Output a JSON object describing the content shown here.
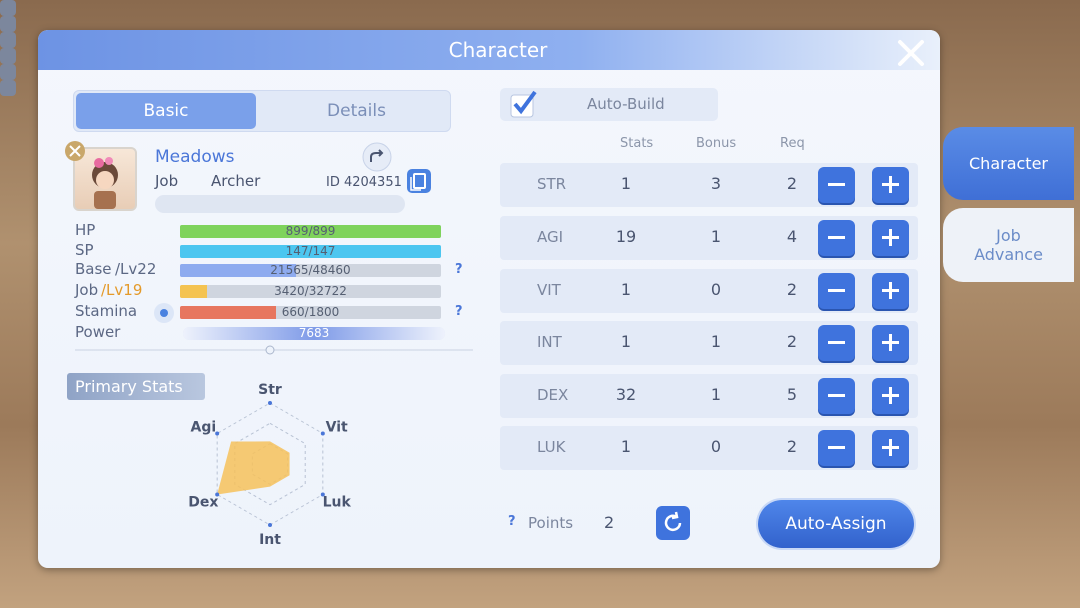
{
  "header": {
    "title": "Character"
  },
  "tabs": [
    "Basic",
    "Details"
  ],
  "profile": {
    "name": "Meadows",
    "job_label": "Job",
    "job": "Archer",
    "id": "ID 4204351"
  },
  "bars": [
    {
      "label": "HP",
      "text": "899/899",
      "current": 899,
      "max": 899,
      "color": "#7fd35c"
    },
    {
      "label": "SP",
      "text": "147/147",
      "current": 147,
      "max": 147,
      "color": "#4cc6f0"
    },
    {
      "label": "Base",
      "level": "/Lv22",
      "text": "21565/48460",
      "current": 21565,
      "max": 48460,
      "color": "#8eabef",
      "help": true
    },
    {
      "label": "Job",
      "level": "/Lv19",
      "text": "3420/32722",
      "current": 3420,
      "max": 32722,
      "color": "#f4c351"
    },
    {
      "label": "Stamina",
      "text": "660/1800",
      "current": 660,
      "max": 1800,
      "color": "#e7765f",
      "help": true
    },
    {
      "label": "Power",
      "text": "7683",
      "current": 7683,
      "max": 7683,
      "color": "#7f9be8"
    }
  ],
  "help_icon": "?",
  "primary_stats": {
    "title": "Primary Stats",
    "axes": [
      "Str",
      "Vit",
      "Luk",
      "Int",
      "Dex",
      "Agi"
    ]
  },
  "auto_build": "Auto-Build",
  "table": {
    "headers": [
      "Stats",
      "Bonus",
      "Req"
    ],
    "rows": [
      {
        "name": "STR",
        "stats": 1,
        "bonus": 3,
        "req": 2
      },
      {
        "name": "AGI",
        "stats": 19,
        "bonus": 1,
        "req": 4
      },
      {
        "name": "VIT",
        "stats": 1,
        "bonus": 0,
        "req": 2
      },
      {
        "name": "INT",
        "stats": 1,
        "bonus": 1,
        "req": 2
      },
      {
        "name": "DEX",
        "stats": 32,
        "bonus": 1,
        "req": 5
      },
      {
        "name": "LUK",
        "stats": 1,
        "bonus": 0,
        "req": 2
      }
    ]
  },
  "points": {
    "label": "Points",
    "value": 2
  },
  "auto_assign": "Auto-Assign",
  "side_tabs": [
    "Character",
    "Job Advance"
  ]
}
